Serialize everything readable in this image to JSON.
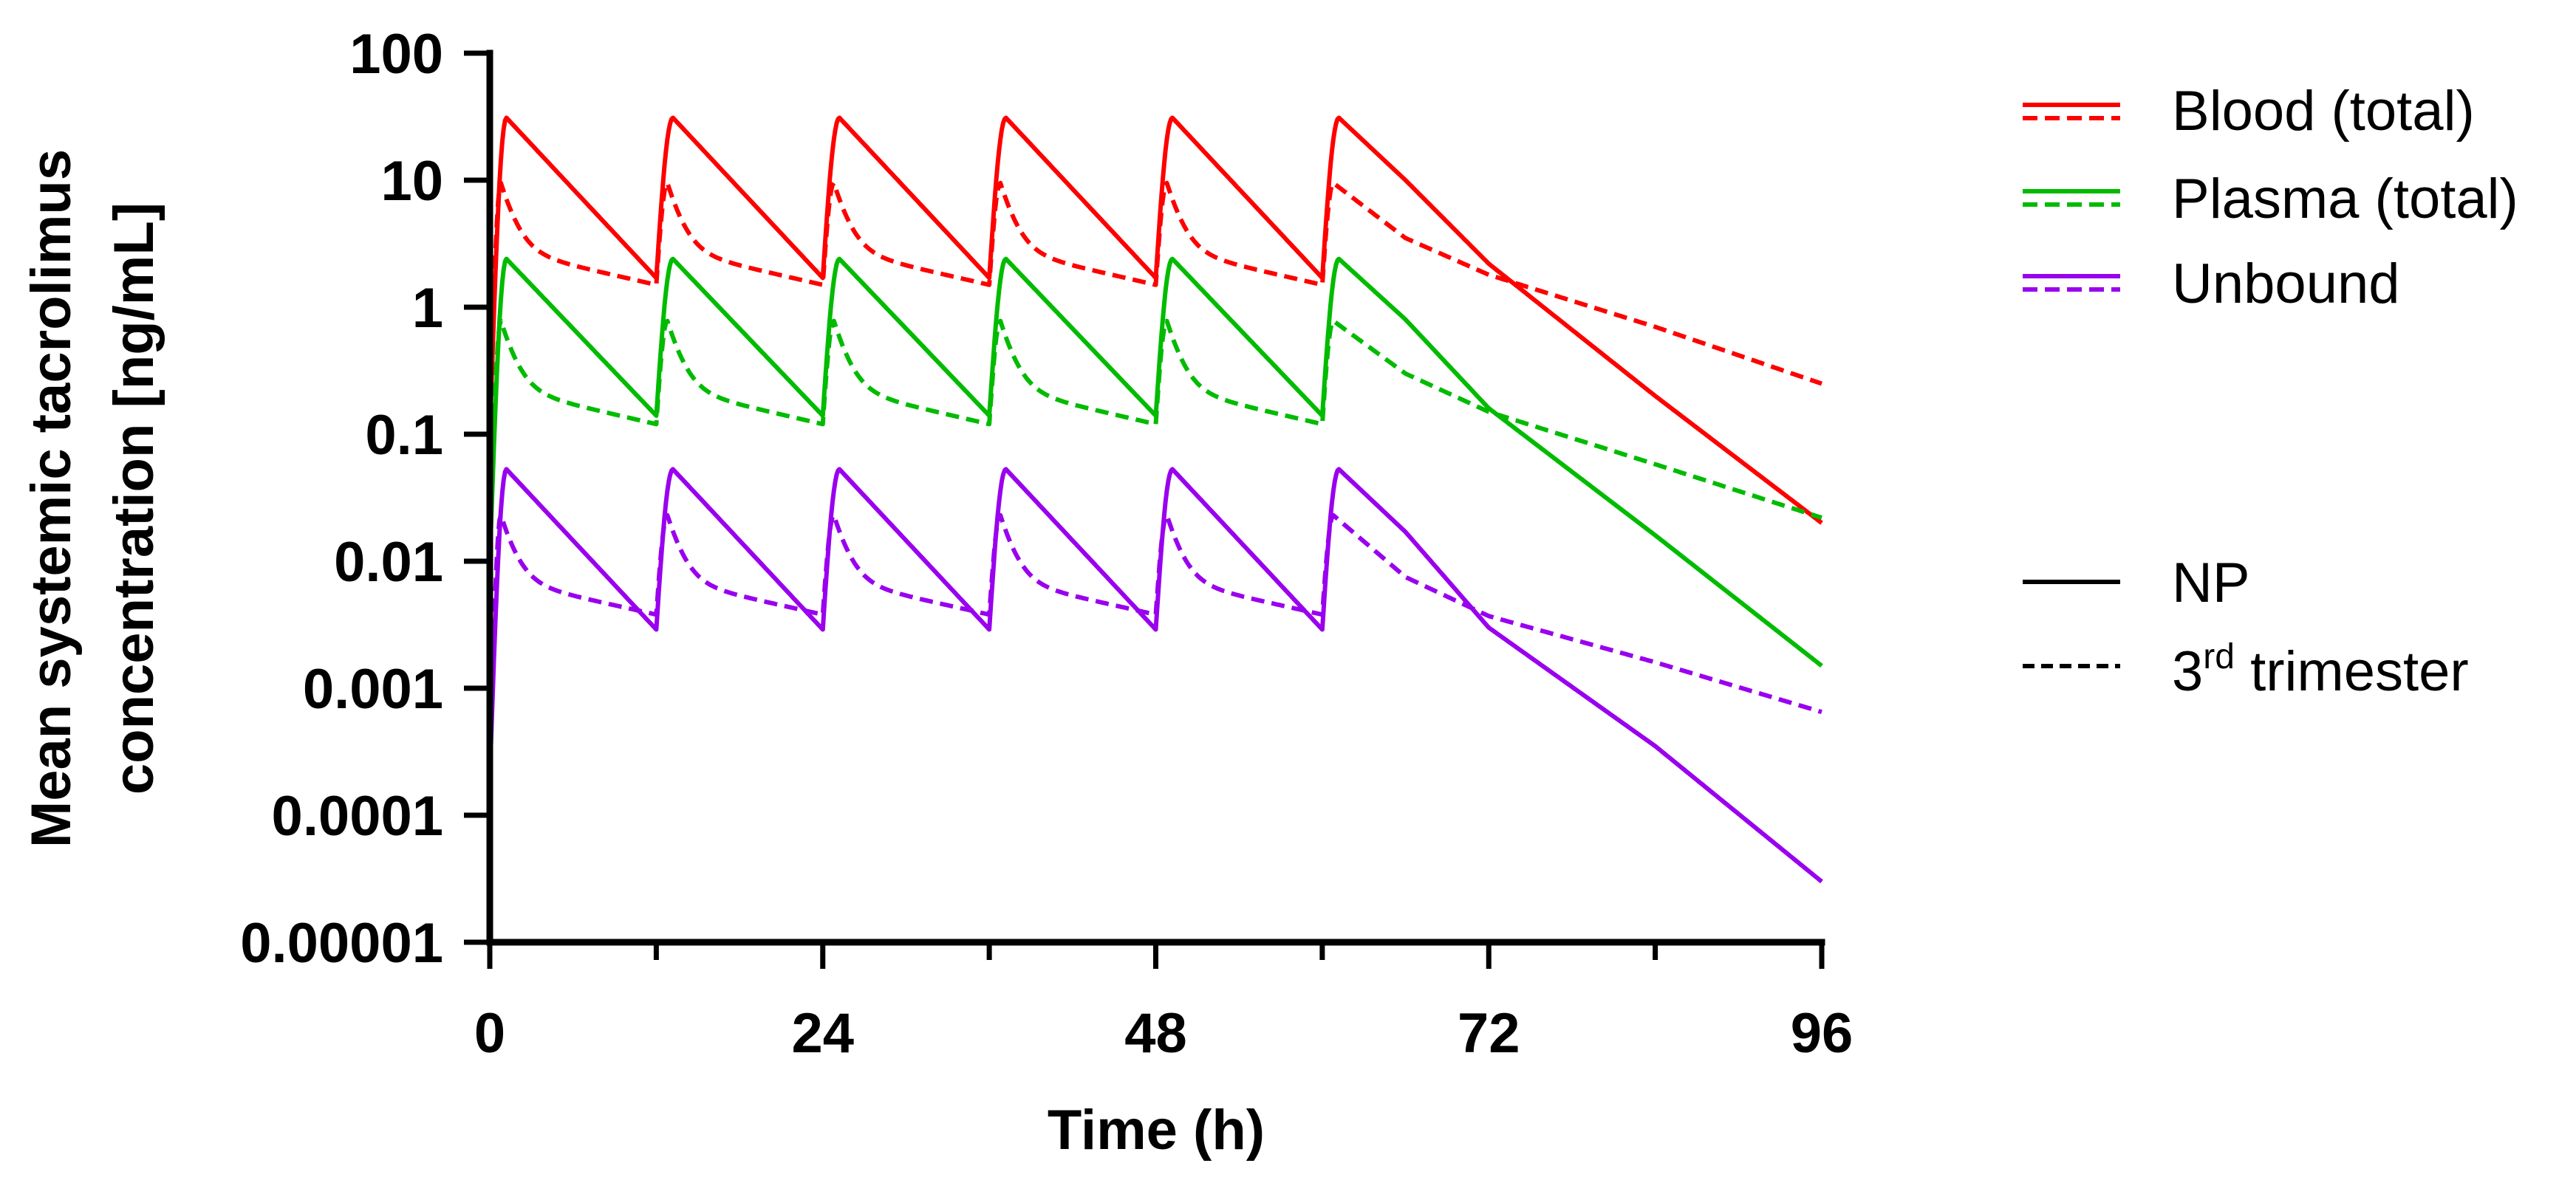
{
  "chart_data": {
    "type": "line",
    "yscale": "log",
    "xlabel": "Time (h)",
    "ylabel_line1": "Mean systemic tacrolimus",
    "ylabel_line2": "concentration [ng/mL]",
    "xlim": [
      0,
      96
    ],
    "ylim": [
      1e-05,
      100
    ],
    "x_ticks": [
      0,
      24,
      48,
      72,
      96
    ],
    "x_minor_ticks": [
      12,
      36,
      60,
      84
    ],
    "y_ticks": [
      100,
      10,
      1,
      0.1,
      0.01,
      0.001,
      0.0001,
      1e-05
    ],
    "y_tick_labels": [
      "100",
      "10",
      "1",
      "0.1",
      "0.01",
      "0.001",
      "0.0001",
      "0.00001"
    ],
    "dosing": {
      "interval_h": 12,
      "doses": 6,
      "first_dose_h": 0
    },
    "colors": {
      "blood": "#ff0000",
      "plasma": "#00bb00",
      "unbound": "#9900ee"
    },
    "legend": {
      "color_entries": [
        {
          "label": "Blood (total)",
          "color": "#ff0000"
        },
        {
          "label": "Plasma (total)",
          "color": "#00bb00"
        },
        {
          "label": "Unbound",
          "color": "#9900ee"
        }
      ],
      "style_entries": [
        {
          "label": "NP",
          "style": "solid"
        },
        {
          "label_main": "3",
          "label_sup": "rd",
          "label_rest": " trimester",
          "style": "dashed"
        }
      ]
    },
    "series": [
      {
        "name": "Blood (total) NP",
        "color": "#ff0000",
        "style": "solid",
        "trough0": 0.1,
        "peak": 31,
        "trough": 1.7,
        "tmax_h": 1.2,
        "end_value": 0.02,
        "end_time_h": 96,
        "terminal_pts": [
          [
            66,
            10
          ],
          [
            72,
            2.2
          ],
          [
            84,
            0.2
          ]
        ]
      },
      {
        "name": "Blood (total) 3rd trimester",
        "color": "#ff0000",
        "style": "dashed",
        "trough0": 0.1,
        "peak": 9.5,
        "trough": 1.5,
        "tmax_h": 0.8,
        "fast_tau_h": 1.0,
        "end_value": 0.25,
        "end_time_h": 96,
        "terminal_pts": [
          [
            66,
            3.5
          ],
          [
            72,
            1.8
          ],
          [
            84,
            0.7
          ]
        ]
      },
      {
        "name": "Plasma (total) NP",
        "color": "#00bb00",
        "style": "solid",
        "trough0": 0.01,
        "peak": 2.4,
        "trough": 0.14,
        "tmax_h": 1.2,
        "end_value": 0.0015,
        "end_time_h": 96,
        "terminal_pts": [
          [
            66,
            0.8
          ],
          [
            72,
            0.16
          ],
          [
            84,
            0.016
          ]
        ]
      },
      {
        "name": "Plasma (total) 3rd trimester",
        "color": "#00bb00",
        "style": "dashed",
        "trough0": 0.01,
        "peak": 0.78,
        "trough": 0.12,
        "tmax_h": 0.8,
        "fast_tau_h": 1.0,
        "end_value": 0.022,
        "end_time_h": 96,
        "terminal_pts": [
          [
            66,
            0.3
          ],
          [
            72,
            0.15
          ],
          [
            84,
            0.058
          ]
        ]
      },
      {
        "name": "Unbound NP",
        "color": "#9900ee",
        "style": "solid",
        "trough0": 0.0002,
        "peak": 0.053,
        "trough": 0.0029,
        "tmax_h": 1.2,
        "end_value": 3e-05,
        "end_time_h": 96,
        "terminal_pts": [
          [
            66,
            0.017
          ],
          [
            72,
            0.003
          ],
          [
            84,
            0.00035
          ]
        ]
      },
      {
        "name": "Unbound 3rd trimester",
        "color": "#9900ee",
        "style": "dashed",
        "trough0": 0.0002,
        "peak": 0.023,
        "trough": 0.0038,
        "tmax_h": 0.8,
        "fast_tau_h": 1.0,
        "end_value": 0.00065,
        "end_time_h": 96,
        "terminal_pts": [
          [
            66,
            0.0075
          ],
          [
            72,
            0.0037
          ],
          [
            84,
            0.0016
          ]
        ]
      }
    ]
  }
}
